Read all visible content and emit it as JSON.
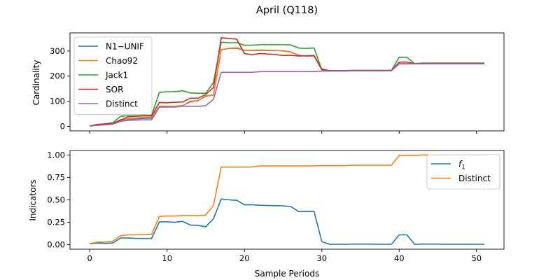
{
  "title": "April (Q118)",
  "colors": {
    "blue": "#1f77b4",
    "orange": "#ff7f0e",
    "green": "#2ca02c",
    "red": "#d62728",
    "purple": "#9467bd"
  },
  "chart_data": [
    {
      "type": "line",
      "ylabel": "Cardinality",
      "xlim": [
        -2.55,
        53.55
      ],
      "ylim": [
        -18,
        372
      ],
      "xticks": [
        0,
        10,
        20,
        30,
        40,
        50
      ],
      "yticks": [
        0,
        100,
        200,
        300
      ],
      "legend": "top-left",
      "x": [
        0,
        1,
        2,
        3,
        4,
        5,
        6,
        7,
        8,
        9,
        10,
        11,
        12,
        13,
        14,
        15,
        16,
        17,
        18,
        19,
        20,
        21,
        22,
        23,
        24,
        25,
        26,
        27,
        28,
        29,
        30,
        31,
        32,
        33,
        34,
        35,
        36,
        37,
        38,
        39,
        40,
        41,
        42,
        43,
        44,
        45,
        46,
        47,
        48,
        49,
        50,
        51
      ],
      "series": [
        {
          "name": "N1−UNIF",
          "color": "blue",
          "values": [
            2,
            5,
            7,
            10,
            25,
            27,
            30,
            32,
            33,
            77,
            78,
            79,
            82,
            100,
            102,
            120,
            125,
            305,
            310,
            311,
            303,
            302,
            302,
            302,
            302,
            301,
            296,
            283,
            280,
            280,
            225,
            221,
            221,
            221,
            222,
            222,
            222,
            222,
            222,
            222,
            249,
            249,
            249,
            249,
            249,
            249,
            249,
            249,
            249,
            249,
            249,
            249
          ]
        },
        {
          "name": "Chao92",
          "color": "orange",
          "values": [
            2,
            6,
            8,
            12,
            26,
            30,
            33,
            36,
            37,
            80,
            80,
            80,
            83,
            97,
            102,
            122,
            125,
            305,
            311,
            313,
            303,
            303,
            304,
            303,
            302,
            300,
            296,
            282,
            280,
            280,
            228,
            222,
            222,
            222,
            223,
            223,
            223,
            223,
            223,
            223,
            250,
            250,
            250,
            250,
            250,
            250,
            250,
            250,
            250,
            250,
            250,
            250
          ]
        },
        {
          "name": "Jack1",
          "color": "green",
          "values": [
            2,
            8,
            10,
            15,
            40,
            42,
            42,
            44,
            44,
            135,
            138,
            138,
            142,
            133,
            132,
            132,
            175,
            335,
            333,
            333,
            323,
            323,
            325,
            325,
            325,
            325,
            324,
            312,
            310,
            312,
            225,
            222,
            222,
            222,
            223,
            223,
            223,
            223,
            223,
            223,
            275,
            275,
            250,
            252,
            252,
            252,
            252,
            252,
            252,
            252,
            252,
            252
          ]
        },
        {
          "name": "SOR",
          "color": "red",
          "values": [
            1,
            7,
            10,
            12,
            26,
            38,
            40,
            42,
            42,
            95,
            94,
            96,
            97,
            112,
            112,
            127,
            155,
            353,
            350,
            347,
            290,
            285,
            290,
            288,
            286,
            282,
            283,
            280,
            281,
            282,
            228,
            221,
            221,
            221,
            222,
            222,
            222,
            222,
            222,
            222,
            256,
            256,
            250,
            250,
            250,
            250,
            250,
            250,
            250,
            250,
            250,
            250
          ]
        },
        {
          "name": "Distinct",
          "color": "purple",
          "values": [
            1,
            4,
            6,
            9,
            20,
            24,
            25,
            26,
            26,
            77,
            77,
            77,
            80,
            80,
            80,
            82,
            108,
            215,
            215,
            215,
            215,
            215,
            218,
            218,
            218,
            218,
            218,
            218,
            218,
            218,
            220,
            220,
            220,
            220,
            221,
            221,
            221,
            221,
            221,
            221,
            249,
            249,
            249,
            249,
            249,
            249,
            249,
            249,
            249,
            249,
            249,
            249
          ]
        }
      ]
    },
    {
      "type": "line",
      "xlabel": "Sample Periods",
      "ylabel": "Indicators",
      "xlim": [
        -2.55,
        53.55
      ],
      "ylim": [
        -0.05,
        1.05
      ],
      "xticks": [
        0,
        10,
        20,
        30,
        40,
        50
      ],
      "yticks": [
        0.0,
        0.25,
        0.5,
        0.75,
        1.0
      ],
      "ytick_labels": [
        "0.00",
        "0.25",
        "0.50",
        "0.75",
        "1.00"
      ],
      "legend": "top-right",
      "x": [
        0,
        1,
        2,
        3,
        4,
        5,
        6,
        7,
        8,
        9,
        10,
        11,
        12,
        13,
        14,
        15,
        16,
        17,
        18,
        19,
        20,
        21,
        22,
        23,
        24,
        25,
        26,
        27,
        28,
        29,
        30,
        31,
        32,
        33,
        34,
        35,
        36,
        37,
        38,
        39,
        40,
        41,
        42,
        43,
        44,
        45,
        46,
        47,
        48,
        49,
        50,
        51
      ],
      "series": [
        {
          "name": "f",
          "name_sub": "1",
          "color": "blue",
          "values": [
            0.01,
            0.02,
            0.015,
            0.02,
            0.075,
            0.075,
            0.07,
            0.07,
            0.07,
            0.255,
            0.255,
            0.25,
            0.26,
            0.22,
            0.215,
            0.2,
            0.29,
            0.51,
            0.5,
            0.495,
            0.445,
            0.445,
            0.44,
            0.437,
            0.435,
            0.433,
            0.425,
            0.37,
            0.37,
            0.37,
            0.035,
            0.005,
            0.005,
            0.005,
            0.007,
            0.007,
            0.007,
            0.006,
            0.005,
            0.005,
            0.11,
            0.11,
            0.005,
            0.007,
            0.007,
            0.007,
            0.005,
            0.005,
            0.005,
            0.005,
            0.005,
            0.005
          ]
        },
        {
          "name": "Distinct",
          "color": "orange",
          "values": [
            0.01,
            0.03,
            0.03,
            0.04,
            0.1,
            0.11,
            0.11,
            0.115,
            0.115,
            0.315,
            0.32,
            0.32,
            0.325,
            0.325,
            0.325,
            0.33,
            0.44,
            0.865,
            0.865,
            0.865,
            0.865,
            0.867,
            0.878,
            0.878,
            0.878,
            0.878,
            0.878,
            0.878,
            0.878,
            0.88,
            0.882,
            0.882,
            0.882,
            0.882,
            0.886,
            0.886,
            0.886,
            0.886,
            0.886,
            0.886,
            0.995,
            0.995,
            0.995,
            1.0,
            1.0,
            1.0,
            1.0,
            1.0,
            1.0,
            1.0,
            1.0,
            1.0
          ]
        }
      ]
    }
  ]
}
